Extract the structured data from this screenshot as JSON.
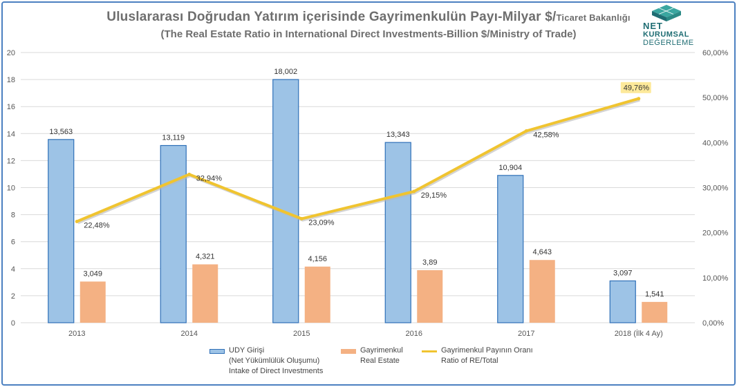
{
  "title": {
    "main": "Uluslararası Doğrudan Yatırım içerisinde Gayrimenkulün Payı-Milyar $/",
    "suffix": "Ticaret Bakanlığı",
    "sub": "(The Real Estate Ratio in International Direct Investments-Billion $/Ministry of Trade)"
  },
  "logo": {
    "line1": "NET",
    "line2": "KURUMSAL",
    "line3": "DEĞERLEME"
  },
  "colors": {
    "bar1_fill": "#9dc3e6",
    "bar1_stroke": "#2e6fb7",
    "bar2_fill": "#f4b183",
    "line": "#f0c430",
    "line_shadow": "#b8b8b8",
    "grid": "#d9d9d9",
    "highlight_label": "#fde99a"
  },
  "legend": [
    {
      "line1": "UDY Girişi",
      "line2": "(Net Yükümlülük Oluşumu)",
      "line3": "Intake of Direct Investments"
    },
    {
      "line1": "Gayrimenkul",
      "line2": "Real Estate"
    },
    {
      "line1": "Gayrimenkul Payının Oranı",
      "line2": "Ratio of RE/Total"
    }
  ],
  "chart_data": {
    "type": "bar",
    "categories": [
      "2013",
      "2014",
      "2015",
      "2016",
      "2017",
      "2018 (İlk 4 Ay)"
    ],
    "series": [
      {
        "name": "UDY Girişi",
        "type": "bar",
        "values": [
          13.563,
          13.119,
          18.002,
          13.343,
          10.904,
          3.097
        ],
        "labels": [
          "13,563",
          "13,119",
          "18,002",
          "13,343",
          "10,904",
          "3,097"
        ]
      },
      {
        "name": "Gayrimenkul",
        "type": "bar",
        "values": [
          3.049,
          4.321,
          4.156,
          3.89,
          4.643,
          1.541
        ],
        "labels": [
          "3,049",
          "4,321",
          "4,156",
          "3,89",
          "4,643",
          "1,541"
        ]
      },
      {
        "name": "Gayrimenkul Payının Oranı",
        "type": "line",
        "axis": "right",
        "values": [
          22.48,
          32.94,
          23.09,
          29.15,
          42.58,
          49.76
        ],
        "labels": [
          "22,48%",
          "32,94%",
          "23,09%",
          "29,15%",
          "42,58%",
          "49,76%"
        ]
      }
    ],
    "y_left": {
      "min": 0,
      "max": 20,
      "ticks": [
        0,
        2,
        4,
        6,
        8,
        10,
        12,
        14,
        16,
        18,
        20
      ],
      "tick_labels": [
        "0",
        "2",
        "4",
        "6",
        "8",
        "10",
        "12",
        "14",
        "16",
        "18",
        "20"
      ]
    },
    "y_right": {
      "min": 0,
      "max": 60,
      "ticks": [
        0,
        10,
        20,
        30,
        40,
        50,
        60
      ],
      "tick_labels": [
        "0,00%",
        "10,00%",
        "20,00%",
        "30,00%",
        "40,00%",
        "50,00%",
        "60,00%"
      ]
    },
    "grid": true,
    "legend_position": "bottom"
  }
}
